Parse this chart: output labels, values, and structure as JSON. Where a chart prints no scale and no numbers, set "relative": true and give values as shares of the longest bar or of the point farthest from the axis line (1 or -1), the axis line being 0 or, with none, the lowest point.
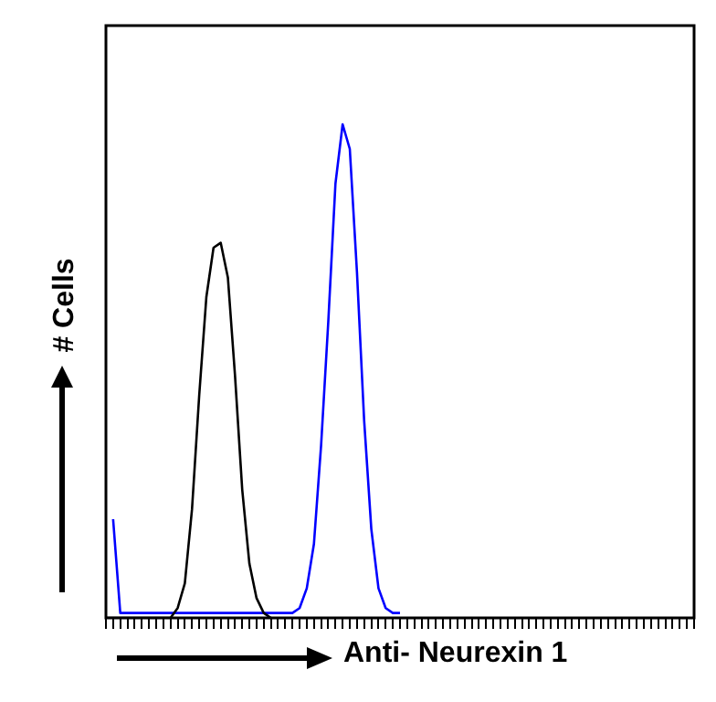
{
  "chart_data": {
    "type": "line",
    "relative": true,
    "xlabel": "Anti- Neurexin 1",
    "ylabel": "# Cells",
    "categories": [
      null,
      null,
      null,
      null,
      null,
      null,
      null,
      null,
      null,
      null,
      null,
      null,
      null,
      null,
      null,
      null,
      null,
      null,
      null,
      null,
      null,
      null,
      null,
      null,
      null,
      null,
      null,
      null,
      null,
      null,
      null,
      null,
      null,
      null,
      null,
      null,
      null,
      null,
      null,
      null,
      null,
      null,
      null,
      null,
      null,
      null,
      null,
      null,
      null,
      null,
      null,
      null,
      null,
      null,
      null,
      null,
      null,
      null,
      null,
      null,
      null,
      null,
      null,
      null,
      null,
      null,
      null,
      null,
      null,
      null,
      null,
      null,
      null,
      null,
      null,
      null,
      null,
      null,
      null,
      null,
      null,
      null,
      null
    ],
    "series": [
      {
        "color": "#000000",
        "values": [
          0,
          0,
          0,
          0,
          0,
          0,
          0,
          0,
          0,
          0,
          0.02,
          0.07,
          0.22,
          0.45,
          0.65,
          0.75,
          0.76,
          0.69,
          0.49,
          0.26,
          0.11,
          0.04,
          0.01,
          0,
          null,
          null,
          null,
          null,
          null,
          null,
          null,
          null,
          null,
          null,
          null,
          null,
          null,
          null,
          null,
          null,
          null,
          null,
          null,
          null,
          null,
          null,
          null,
          null,
          null,
          null,
          null,
          null,
          null,
          null,
          null,
          null,
          null,
          null,
          null,
          null,
          null,
          null,
          null,
          null,
          null,
          null,
          null,
          null,
          null,
          null,
          null,
          null,
          null,
          null,
          null,
          null,
          null,
          null,
          null,
          null,
          null,
          null,
          null
        ]
      },
      {
        "color": "#0000ff",
        "values": [
          null,
          0.2,
          0.01,
          0.01,
          0.01,
          0.01,
          0.01,
          0.01,
          0.01,
          0.01,
          0.01,
          0.01,
          0.01,
          0.01,
          0.01,
          0.01,
          0.01,
          0.01,
          0.01,
          0.01,
          0.01,
          0.01,
          0.01,
          0.01,
          0.01,
          0.01,
          0.01,
          0.02,
          0.06,
          0.15,
          0.35,
          0.6,
          0.88,
          1,
          0.95,
          0.7,
          0.4,
          0.18,
          0.06,
          0.02,
          0.01,
          0.01,
          null,
          null,
          null,
          null,
          null,
          null,
          null,
          null,
          null,
          null,
          null,
          null,
          null,
          null,
          null,
          null,
          null,
          null,
          null,
          null,
          null,
          null,
          null,
          null,
          null,
          null,
          null,
          null,
          null,
          null,
          null,
          null,
          null,
          null,
          null,
          null,
          null,
          null,
          null,
          null,
          null
        ]
      }
    ],
    "legend": false,
    "grid": false,
    "tick_labels": false,
    "marker": "none",
    "line_style": "solid"
  }
}
